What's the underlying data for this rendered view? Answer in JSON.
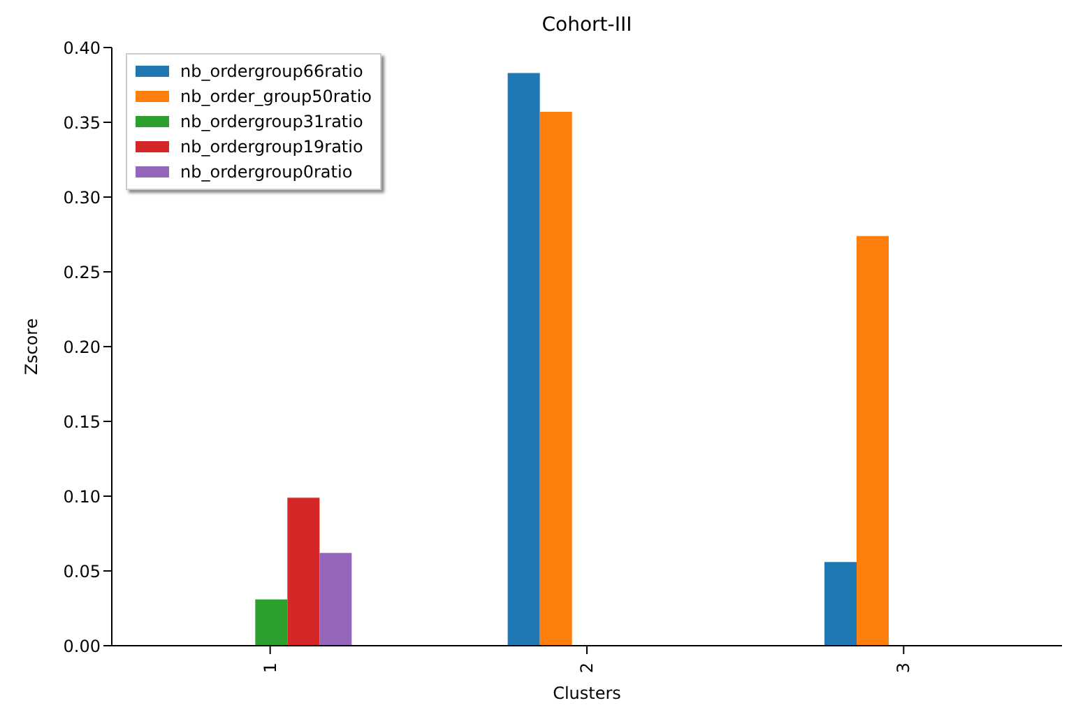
{
  "chart_data": {
    "type": "bar",
    "title": "Cohort-III",
    "xlabel": "Clusters",
    "ylabel": "Zscore",
    "categories": [
      "1",
      "2",
      "3"
    ],
    "series": [
      {
        "name": "nb_ordergroup66ratio",
        "color": "#1f77b4",
        "values": [
          0,
          0.383,
          0.056
        ]
      },
      {
        "name": "nb_order_group50ratio",
        "color": "#ff7f0e",
        "values": [
          0,
          0.357,
          0.274
        ]
      },
      {
        "name": "nb_ordergroup31ratio",
        "color": "#2ca02c",
        "values": [
          0.031,
          0,
          0
        ]
      },
      {
        "name": "nb_ordergroup19ratio",
        "color": "#d62728",
        "values": [
          0.099,
          0,
          0
        ]
      },
      {
        "name": "nb_ordergroup0ratio",
        "color": "#9467bd",
        "values": [
          0.062,
          0,
          0
        ]
      }
    ],
    "ylim": [
      0,
      0.4
    ],
    "yticks": [
      {
        "value": 0,
        "label": "0.00"
      },
      {
        "value": 0.05,
        "label": "0.05"
      },
      {
        "value": 0.1,
        "label": "0.10"
      },
      {
        "value": 0.15,
        "label": "0.15"
      },
      {
        "value": 0.2,
        "label": "0.20"
      },
      {
        "value": 0.25,
        "label": "0.25"
      },
      {
        "value": 0.3,
        "label": "0.30"
      },
      {
        "value": 0.35,
        "label": "0.35"
      },
      {
        "value": 0.4,
        "label": "0.40"
      }
    ],
    "grid": false,
    "legend": "top left"
  }
}
